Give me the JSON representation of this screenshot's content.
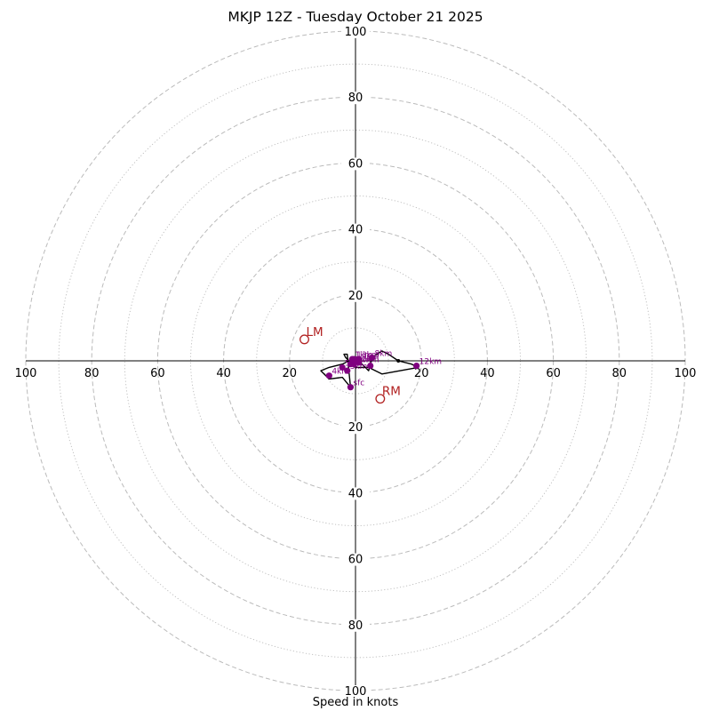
{
  "chart_data": {
    "type": "scatter",
    "subtype": "hodograph",
    "title": "MKJP 12Z - Tuesday October 21 2025",
    "xlabel": "Speed in knots",
    "units": "knots",
    "range": [
      -100,
      100
    ],
    "dashed_rings": [
      20,
      40,
      60,
      80,
      100
    ],
    "dotted_rings": [
      10,
      30,
      50,
      70,
      90
    ],
    "tick_labels": [
      "20",
      "40",
      "60",
      "80",
      "100"
    ],
    "grid_color": "#bbbbbb",
    "colors": {
      "trace": "#000000",
      "points": "#800080",
      "storm_motion": "#b22222"
    },
    "hodograph_trace": {
      "u": [
        -1.5,
        -4,
        -8,
        -10.5,
        -8,
        -4,
        -2,
        0,
        1,
        2,
        4,
        5,
        8,
        10,
        13,
        17,
        19,
        8,
        4,
        0,
        -3,
        -3.5,
        -2.5,
        -1.5
      ],
      "v": [
        -8,
        -5,
        -5.5,
        -3,
        -2,
        -1,
        0,
        0,
        -1,
        -1,
        -3,
        1,
        3,
        2,
        0,
        -1,
        -2,
        -4,
        -2,
        -2,
        1,
        2,
        2,
        -8
      ]
    },
    "points": [
      {
        "label": "sfc",
        "u": -1.5,
        "v": -8
      },
      {
        "label": "1km",
        "u": -1,
        "v": 0.5
      },
      {
        "label": "2km",
        "u": -0.5,
        "v": -1
      },
      {
        "label": "3km",
        "u": -2.5,
        "v": -3
      },
      {
        "label": "4km",
        "u": -8,
        "v": -4.5
      },
      {
        "label": "5km",
        "u": -4,
        "v": -2
      },
      {
        "label": "6km",
        "u": -1.5,
        "v": -1
      },
      {
        "label": "7km",
        "u": 1,
        "v": -0.5
      },
      {
        "label": "8km",
        "u": 5,
        "v": 1
      },
      {
        "label": "9km",
        "u": 4.5,
        "v": -1.5
      },
      {
        "label": "10km",
        "u": -0.5,
        "v": -1
      },
      {
        "label": "11km",
        "u": 1,
        "v": 0.5
      },
      {
        "label": "12km",
        "u": 18.5,
        "v": -1.5
      },
      {
        "label": "13km",
        "u": -0.5,
        "v": 0.5
      }
    ],
    "labels_shown": [
      {
        "text": "1km",
        "u": -1,
        "v": 0.5
      },
      {
        "text": "8km",
        "u": 5,
        "v": 1
      },
      {
        "text": "12km",
        "u": 18.5,
        "v": -1.5
      },
      {
        "text": "10km",
        "u": -0.5,
        "v": -1
      },
      {
        "text": "7km",
        "u": 1,
        "v": -0.5
      },
      {
        "text": "4km",
        "u": -8,
        "v": -4.5
      },
      {
        "text": "5km",
        "u": -4,
        "v": -2
      },
      {
        "text": "3km",
        "u": -2.5,
        "v": -3
      },
      {
        "text": "6km",
        "u": -1.5,
        "v": -1
      },
      {
        "text": "13km",
        "u": -0.5,
        "v": 0.5
      },
      {
        "text": "sfc",
        "u": -1.5,
        "v": -8
      }
    ],
    "storm_motion": [
      {
        "label": "LM",
        "u": -15.5,
        "v": 6.5
      },
      {
        "label": "RM",
        "u": 7.5,
        "v": -11.5
      }
    ]
  }
}
